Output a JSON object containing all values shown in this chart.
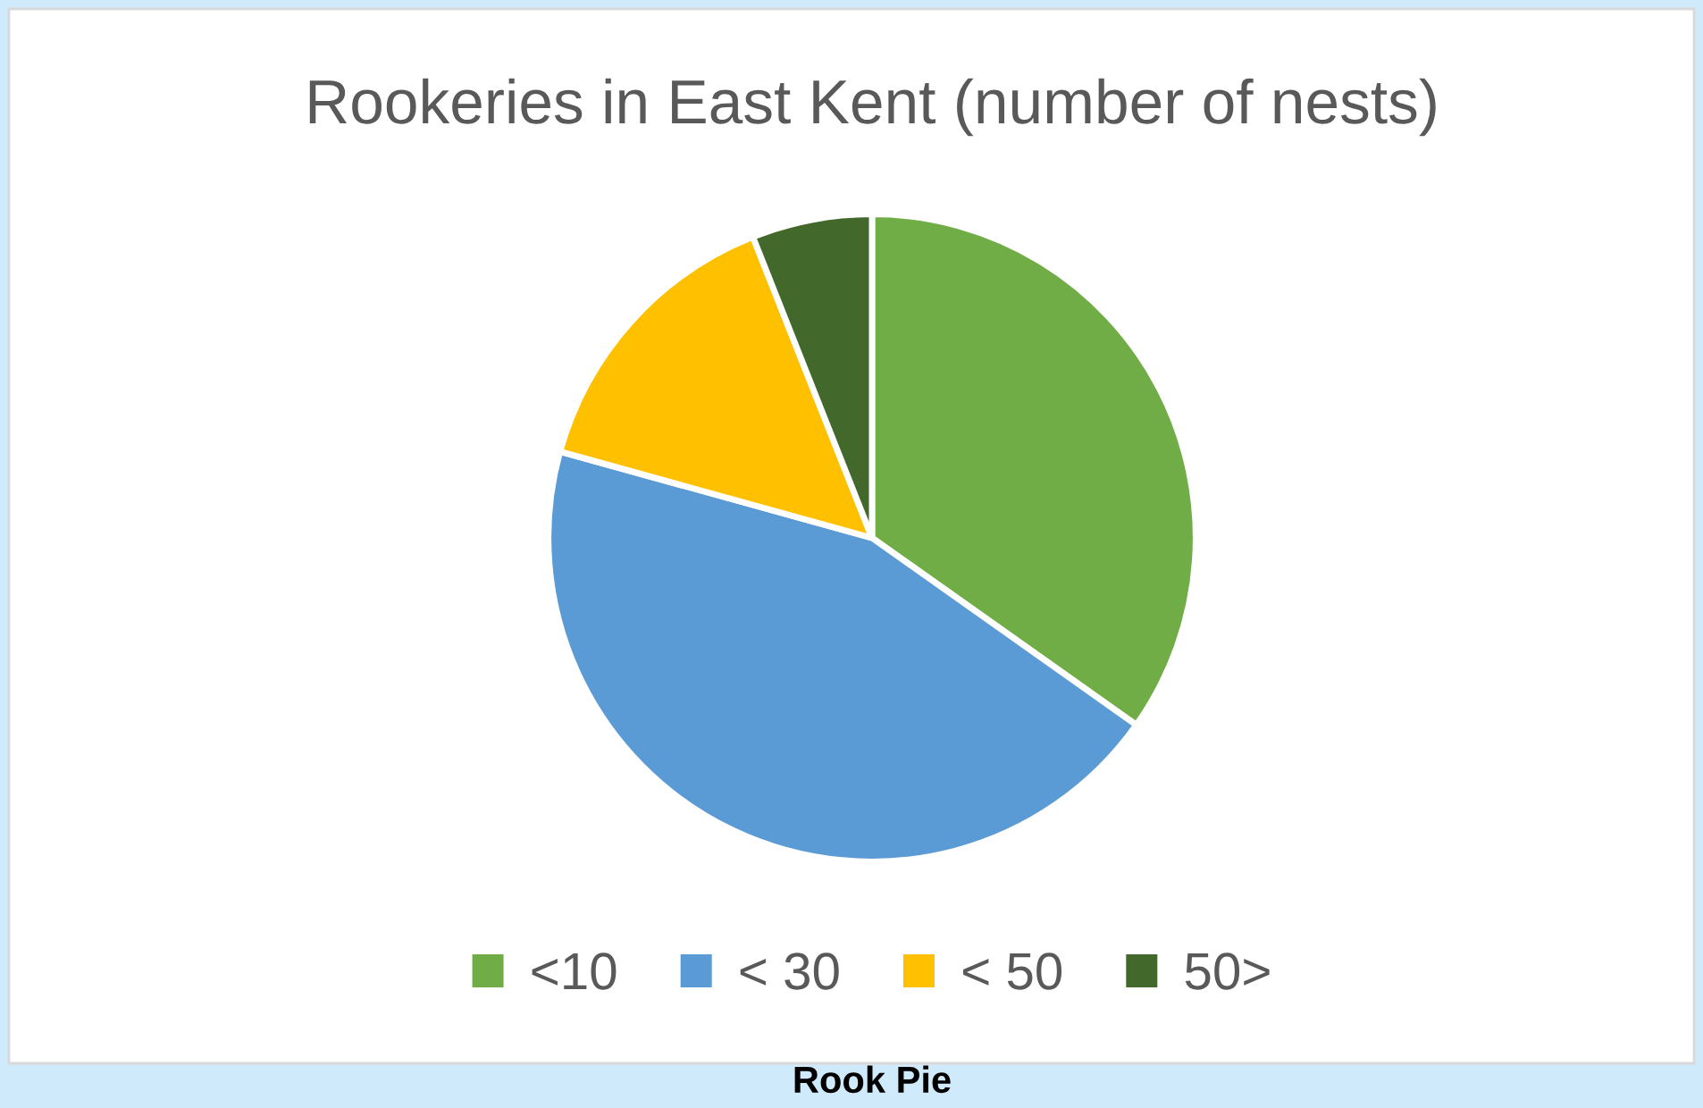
{
  "chart_data": {
    "type": "pie",
    "title": "Rookeries in East Kent (number of nests)",
    "categories": [
      "<10",
      "< 30",
      "< 50",
      "50>"
    ],
    "values": [
      34.8,
      44.5,
      14.7,
      6.0
    ],
    "colors": [
      "#70ad47",
      "#5b9bd5",
      "#ffc000",
      "#43682b"
    ],
    "legend": "bottom",
    "annotations": [
      "Rook Pie"
    ]
  }
}
